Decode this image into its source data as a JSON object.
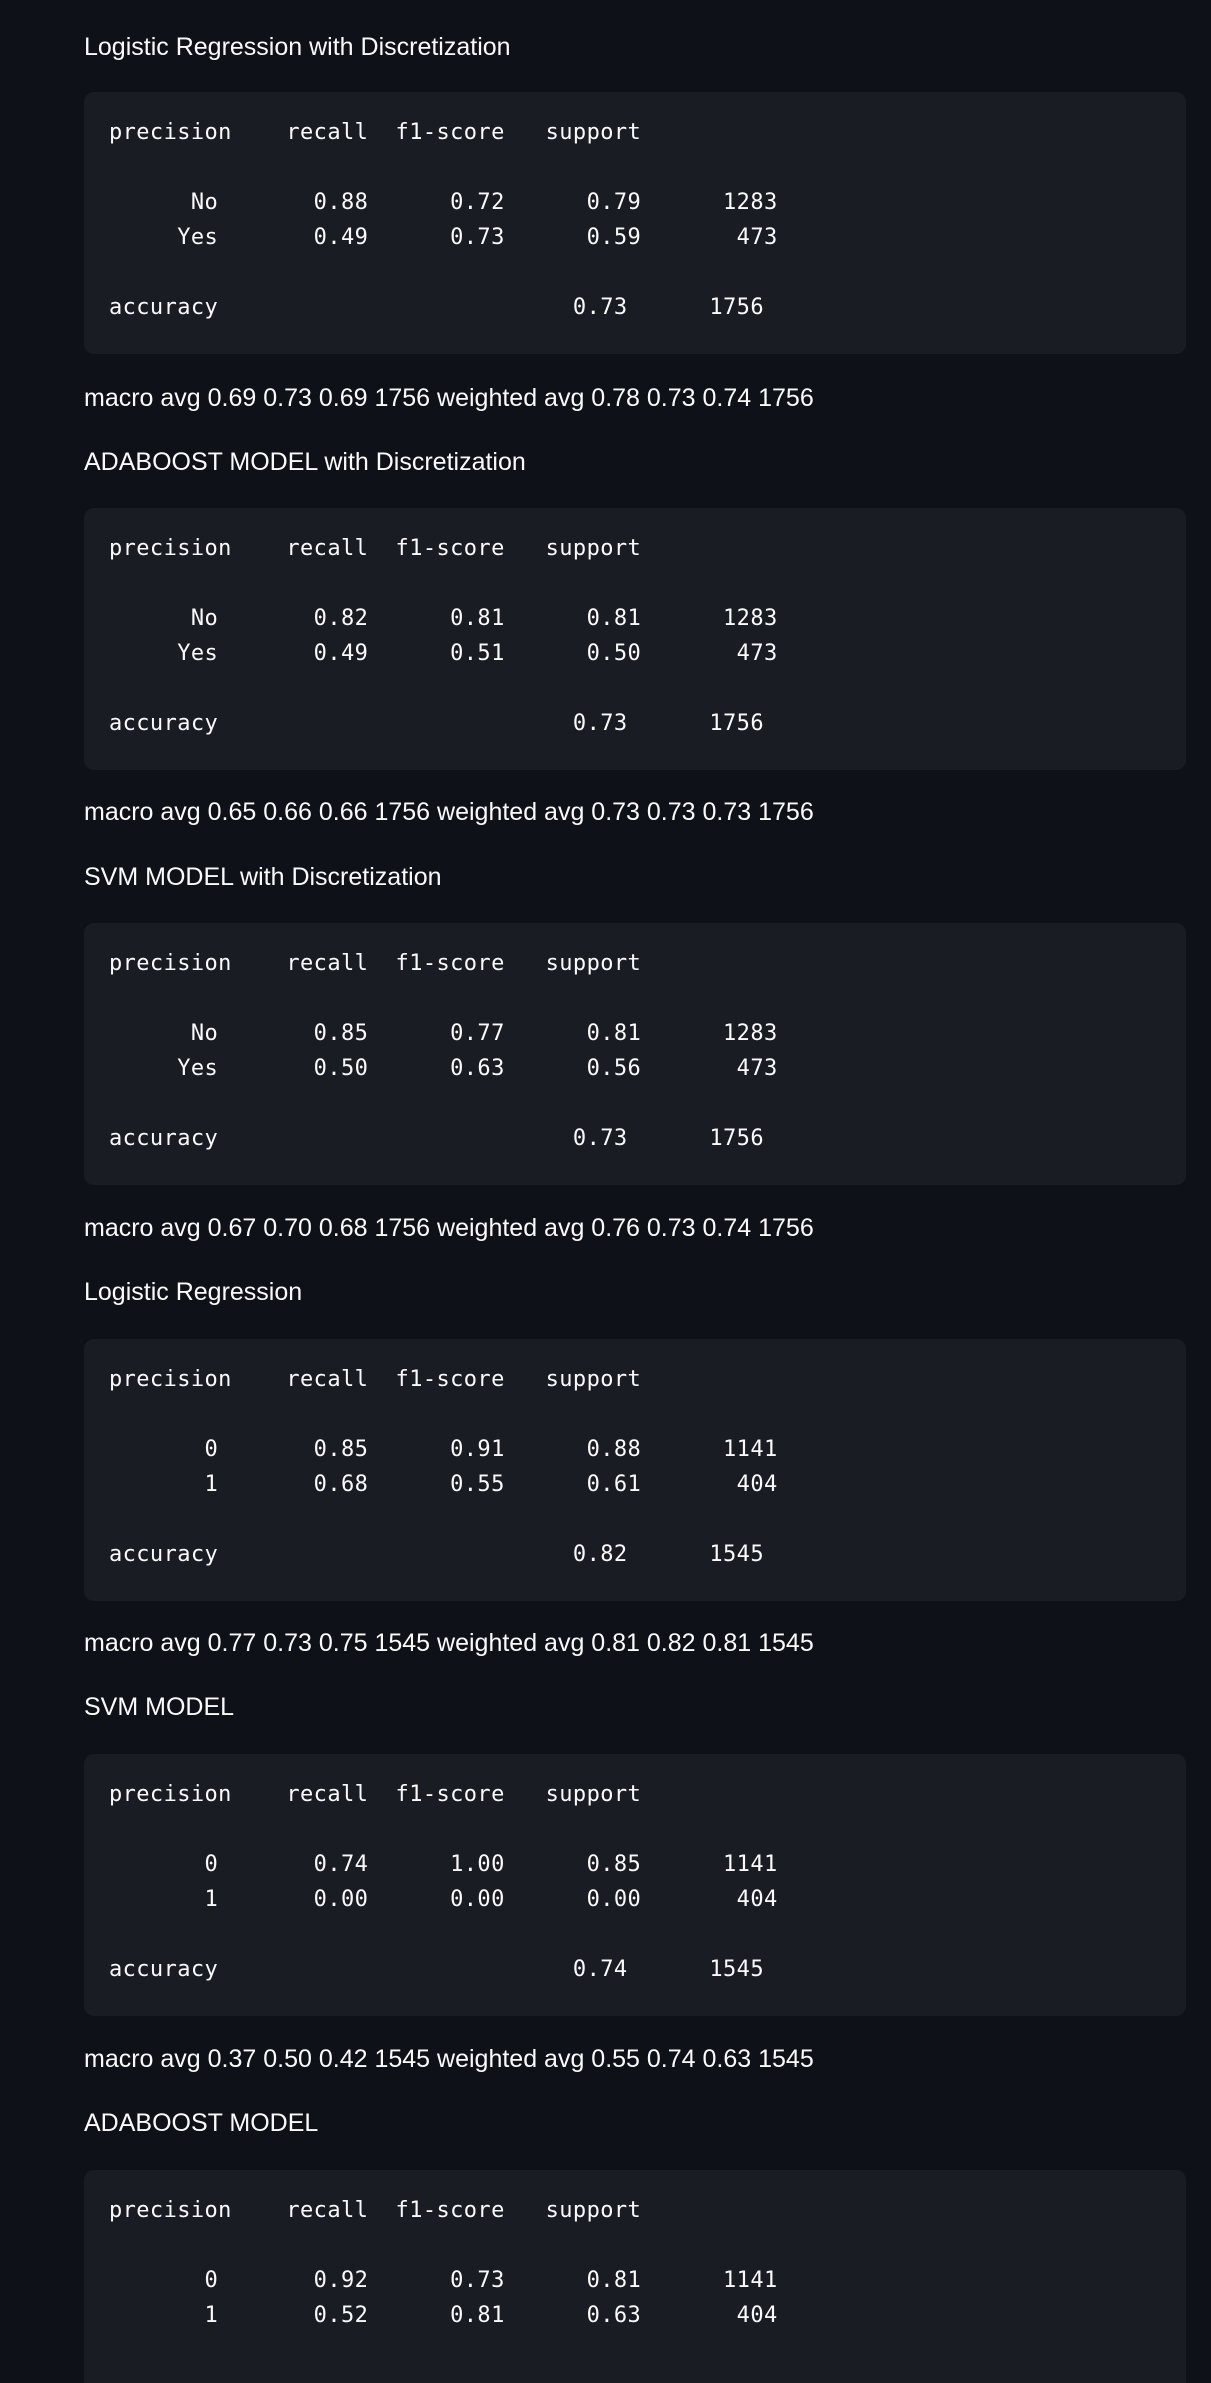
{
  "reports": [
    {
      "title": "Logistic Regression with Discretization",
      "header_line": "precision    recall  f1-score   support",
      "rows": [
        "      No       0.88      0.72      0.79      1283",
        "     Yes       0.49      0.73      0.59       473"
      ],
      "accuracy_line": "accuracy                          0.73      1756",
      "summary": "macro avg 0.69 0.73 0.69 1756 weighted avg 0.78 0.73 0.74 1756"
    },
    {
      "title": "ADABOOST MODEL with Discretization",
      "header_line": "precision    recall  f1-score   support",
      "rows": [
        "      No       0.82      0.81      0.81      1283",
        "     Yes       0.49      0.51      0.50       473"
      ],
      "accuracy_line": "accuracy                          0.73      1756",
      "summary": "macro avg 0.65 0.66 0.66 1756 weighted avg 0.73 0.73 0.73 1756"
    },
    {
      "title": "SVM MODEL with Discretization",
      "header_line": "precision    recall  f1-score   support",
      "rows": [
        "      No       0.85      0.77      0.81      1283",
        "     Yes       0.50      0.63      0.56       473"
      ],
      "accuracy_line": "accuracy                          0.73      1756",
      "summary": "macro avg 0.67 0.70 0.68 1756 weighted avg 0.76 0.73 0.74 1756"
    },
    {
      "title": "Logistic Regression",
      "header_line": "precision    recall  f1-score   support",
      "rows": [
        "       0       0.85      0.91      0.88      1141",
        "       1       0.68      0.55      0.61       404"
      ],
      "accuracy_line": "accuracy                          0.82      1545",
      "summary": "macro avg 0.77 0.73 0.75 1545 weighted avg 0.81 0.82 0.81 1545"
    },
    {
      "title": "SVM MODEL",
      "header_line": "precision    recall  f1-score   support",
      "rows": [
        "       0       0.74      1.00      0.85      1141",
        "       1       0.00      0.00      0.00       404"
      ],
      "accuracy_line": "accuracy                          0.74      1545",
      "summary": "macro avg 0.37 0.50 0.42 1545 weighted avg 0.55 0.74 0.63 1545"
    },
    {
      "title": "ADABOOST MODEL",
      "header_line": "precision    recall  f1-score   support",
      "rows": [
        "       0       0.92      0.73      0.81      1141",
        "       1       0.52      0.81      0.63       404"
      ]
    }
  ],
  "colors": {
    "background": "#0e1117",
    "code_background": "#1a1c24",
    "text": "#fafafa"
  }
}
